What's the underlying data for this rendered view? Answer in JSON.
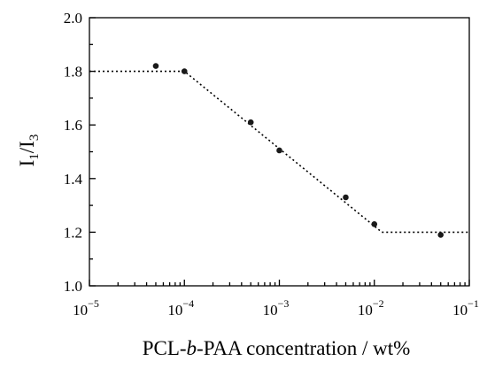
{
  "chart_data": {
    "type": "scatter",
    "xscale": "log",
    "xlim": [
      1e-05,
      0.1
    ],
    "ylim": [
      1.0,
      2.0
    ],
    "xticks": [
      {
        "value": 1e-05,
        "base": "10",
        "exp": "−5"
      },
      {
        "value": 0.0001,
        "base": "10",
        "exp": "−4"
      },
      {
        "value": 0.001,
        "base": "10",
        "exp": "−3"
      },
      {
        "value": 0.01,
        "base": "10",
        "exp": "−2"
      },
      {
        "value": 0.1,
        "base": "10",
        "exp": "−1"
      }
    ],
    "yticks": [
      {
        "value": 1.0,
        "label": "1.0"
      },
      {
        "value": 1.2,
        "label": "1.2"
      },
      {
        "value": 1.4,
        "label": "1.4"
      },
      {
        "value": 1.6,
        "label": "1.6"
      },
      {
        "value": 1.8,
        "label": "1.8"
      },
      {
        "value": 2.0,
        "label": "2.0"
      }
    ],
    "xlabel": {
      "prefix": "PCL-",
      "italic": "b",
      "suffix": "-PAA concentration / wt%"
    },
    "ylabel": {
      "i1": "I",
      "sub1": "1",
      "slash": "/",
      "i3": "I",
      "sub3": "3"
    },
    "points": [
      {
        "x": 5e-05,
        "y": 1.82
      },
      {
        "x": 0.0001,
        "y": 1.8
      },
      {
        "x": 0.0005,
        "y": 1.61
      },
      {
        "x": 0.001,
        "y": 1.505
      },
      {
        "x": 0.005,
        "y": 1.33
      },
      {
        "x": 0.01,
        "y": 1.23
      },
      {
        "x": 0.05,
        "y": 1.19
      }
    ],
    "fit_line": [
      {
        "x": 1e-05,
        "y": 1.8
      },
      {
        "x": 0.0001,
        "y": 1.8
      },
      {
        "x": 0.012,
        "y": 1.2
      },
      {
        "x": 0.1,
        "y": 1.2
      }
    ],
    "grid": false
  }
}
